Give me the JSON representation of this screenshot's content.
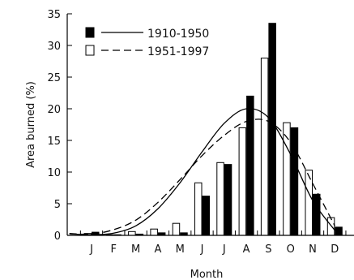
{
  "chart_data": {
    "type": "bar",
    "title": "",
    "xlabel": "Month",
    "ylabel": "Area burned (%)",
    "categories": [
      "J",
      "F",
      "M",
      "A",
      "M",
      "J",
      "J",
      "A",
      "S",
      "O",
      "N",
      "D"
    ],
    "ylim": [
      0,
      35
    ],
    "yticks": [
      0,
      5,
      10,
      15,
      20,
      25,
      30,
      35
    ],
    "ytick_labels": [
      "0",
      "5",
      "10",
      "15",
      "20",
      "25",
      "30",
      "35"
    ],
    "grid": false,
    "legend_position": "top-left",
    "series": [
      {
        "name": "1910-1950",
        "bar_style": "solid-black",
        "curve_style": "solid",
        "values": [
          0.5,
          0.1,
          0.2,
          0.4,
          0.4,
          6.2,
          11.2,
          22.0,
          33.5,
          17.0,
          6.5,
          1.3
        ],
        "fitted_curve": [
          0.25,
          0.1,
          0.35,
          1.5,
          4.2,
          8.3,
          13.2,
          17.7,
          20.0,
          18.6,
          12.8,
          5.5,
          0.8
        ]
      },
      {
        "name": "1951-1997",
        "bar_style": "open-white",
        "curve_style": "dashed",
        "values": [
          0.3,
          0.1,
          0.6,
          1.0,
          1.9,
          8.3,
          11.5,
          17.0,
          28.0,
          17.8,
          10.3,
          2.8
        ],
        "fitted_curve": [
          0.3,
          0.2,
          0.9,
          2.4,
          5.2,
          8.8,
          12.6,
          15.8,
          18.0,
          18.0,
          14.7,
          8.2,
          1.5
        ]
      }
    ]
  }
}
